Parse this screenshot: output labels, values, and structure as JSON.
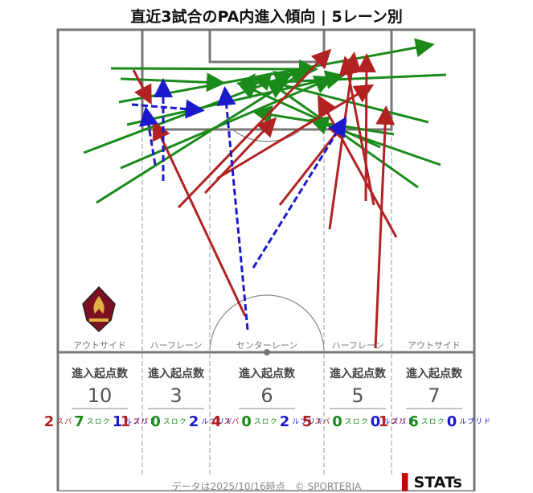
{
  "title": "直近3試合のPA内進入傾向 | 5レーン別",
  "lanes": [
    {
      "label": "アウトサイド",
      "header": "進入起点数",
      "total": "10",
      "pass": "2",
      "cross": "7",
      "dribble": "1"
    },
    {
      "label": "ハーフレーン",
      "header": "進入起点数",
      "total": "3",
      "pass": "1",
      "cross": "0",
      "dribble": "2"
    },
    {
      "label": "センターレーン",
      "header": "進入起点数",
      "total": "6",
      "pass": "4",
      "cross": "0",
      "dribble": "2"
    },
    {
      "label": "ハーフレーン",
      "header": "進入起点数",
      "total": "5",
      "pass": "5",
      "cross": "0",
      "dribble": "0"
    },
    {
      "label": "アウトサイド",
      "header": "進入起点数",
      "total": "7",
      "pass": "1",
      "cross": "6",
      "dribble": "0"
    }
  ],
  "legend": {
    "pass": "パス",
    "cross": "クロス",
    "dribble": "ドリブル"
  },
  "colors": {
    "pass": "#b22222",
    "cross": "#1a8a1a",
    "dribble": "#1a1acc"
  },
  "footer": "データは2025/10/16時点　© SPORTERIA",
  "brand": "STATs"
}
